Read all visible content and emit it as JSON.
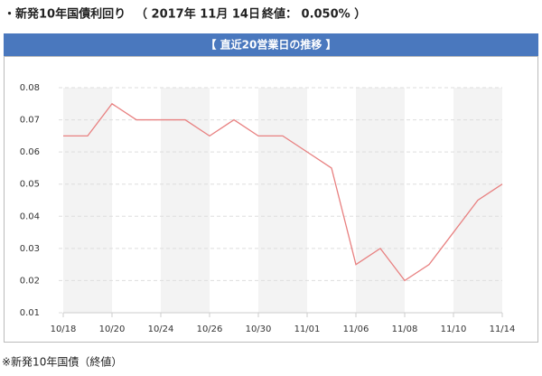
{
  "header": {
    "title": "・新発10年国債利回り",
    "date": "（ 2017年 11月 14日",
    "close": "終値： 0.050% ）"
  },
  "banner": "【 直近20営業日の推移 】",
  "chart_data": {
    "type": "line",
    "categories": [
      "10/18",
      null,
      "10/20",
      null,
      "10/24",
      null,
      "10/26",
      null,
      "10/30",
      null,
      "11/01",
      null,
      "11/06",
      null,
      "11/08",
      null,
      "11/10",
      null,
      "11/14"
    ],
    "values": [
      0.065,
      0.065,
      0.075,
      0.07,
      0.07,
      0.07,
      0.065,
      0.07,
      0.065,
      0.065,
      0.06,
      0.055,
      0.025,
      0.03,
      0.02,
      0.025,
      0.035,
      0.045,
      0.05
    ],
    "color": "#e88080",
    "ylim": [
      0.01,
      0.08
    ],
    "yticks": [
      0.01,
      0.02,
      0.03,
      0.04,
      0.05,
      0.06,
      0.07,
      0.08
    ],
    "grid": true
  },
  "footnote": "※新発10年国債（終値）"
}
